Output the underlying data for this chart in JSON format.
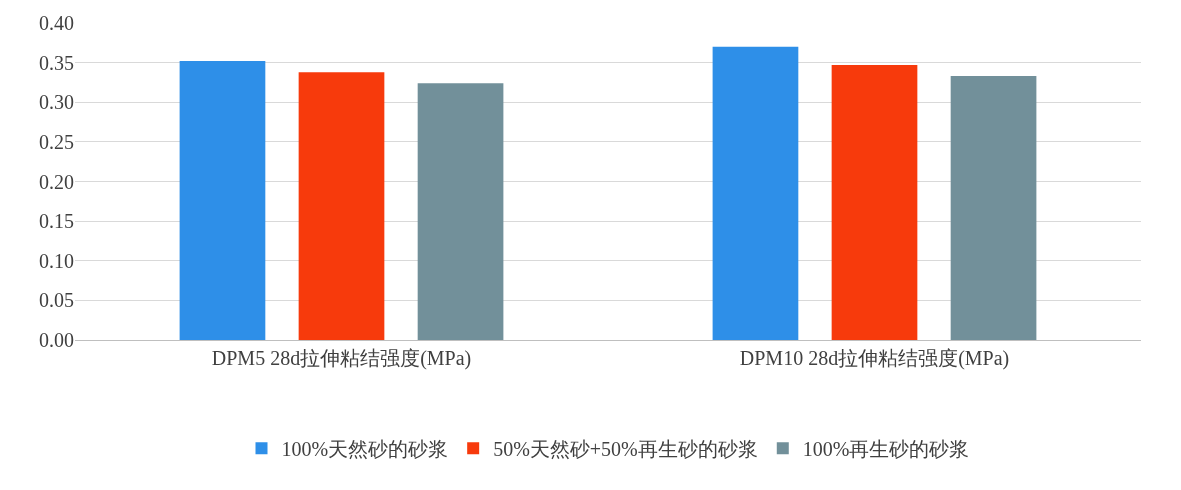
{
  "chart_data": {
    "type": "bar",
    "categories": [
      "DPM5 28d拉伸粘结强度(MPa)",
      "DPM10 28d拉伸粘结强度(MPa)"
    ],
    "series": [
      {
        "name": "100%天然砂的砂浆",
        "color": "#2e8fe8",
        "values": [
          0.352,
          0.37
        ]
      },
      {
        "name": "50%天然砂+50%再生砂的砂浆",
        "color": "#f73a0c",
        "values": [
          0.338,
          0.347
        ]
      },
      {
        "name": "100%再生砂的砂浆",
        "color": "#72909a",
        "values": [
          0.324,
          0.333
        ]
      }
    ],
    "ylim": [
      0,
      0.4
    ],
    "yticks": [
      {
        "value": 0,
        "label": "0.00"
      },
      {
        "value": 0.05,
        "label": "0.05"
      },
      {
        "value": 0.1,
        "label": "0.10"
      },
      {
        "value": 0.15,
        "label": "0.15"
      },
      {
        "value": 0.2,
        "label": "0.20"
      },
      {
        "value": 0.25,
        "label": "0.25"
      },
      {
        "value": 0.3,
        "label": "0.30"
      },
      {
        "value": 0.35,
        "label": "0.35"
      },
      {
        "value": 0.4,
        "label": "0.40"
      }
    ],
    "grid": "y",
    "legend": "bottom"
  }
}
